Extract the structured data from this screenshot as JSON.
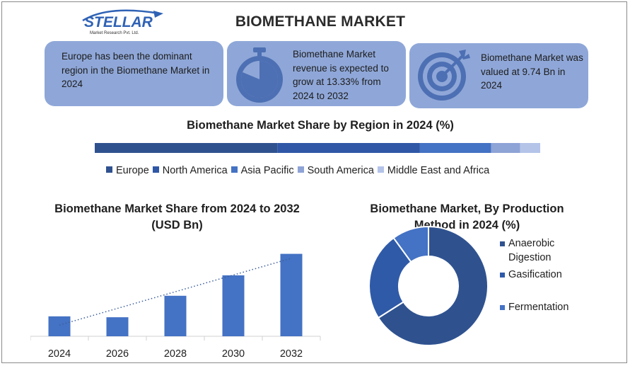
{
  "logo": {
    "brand": "STELLAR",
    "tagline": "Market Research Pvt. Ltd."
  },
  "header": {
    "title": "BIOMETHANE MARKET"
  },
  "cards": [
    {
      "text": "Europe has been the dominant region in the Biomethane Market in 2024"
    },
    {
      "text": "Biomethane Market revenue is expected to grow at 13.33% from 2024 to 2032",
      "icon": "stopwatch-icon"
    },
    {
      "text": "Biomethane Market was valued at 9.74 Bn in 2024",
      "icon": "target-icon"
    }
  ],
  "colors": {
    "card_bg": "#8fa7d8",
    "europe": "#2f528f",
    "north_america": "#2f57a6",
    "asia_pacific": "#4472c4",
    "south_america": "#8ea3d6",
    "mea": "#b4c3e8",
    "bar": "#4472c4",
    "anaerobic": "#2f528f",
    "gasification": "#2f5aa8",
    "fermentation": "#4472c4"
  },
  "chart_data": [
    {
      "type": "bar",
      "orientation": "horizontal-stacked",
      "title": "Biomethane Market Share by Region in 2024 (%)",
      "series": [
        {
          "name": "Europe",
          "value": 41
        },
        {
          "name": "North America",
          "value": 32
        },
        {
          "name": "Asia Pacific",
          "value": 16
        },
        {
          "name": "South America",
          "value": 6.5
        },
        {
          "name": "Middle East and Africa",
          "value": 4.5
        }
      ],
      "legend_position": "bottom"
    },
    {
      "type": "bar",
      "title": "Biomethane Market  Share from 2024 to 2032 (USD Bn)",
      "categories": [
        "2024",
        "2026",
        "2028",
        "2030",
        "2032"
      ],
      "values": [
        9.74,
        9.3,
        19.8,
        29.8,
        40.3
      ],
      "trendline": "linear-dotted",
      "ylim": [
        0,
        45
      ],
      "xlabel": "",
      "ylabel": ""
    },
    {
      "type": "pie",
      "variant": "donut",
      "title": "Biomethane Market, By Production Method in 2024 (%)",
      "labels": [
        "Anaerobic Digestion",
        "Gasification",
        "Fermentation"
      ],
      "values": [
        66,
        24,
        10
      ],
      "legend_position": "right"
    }
  ]
}
